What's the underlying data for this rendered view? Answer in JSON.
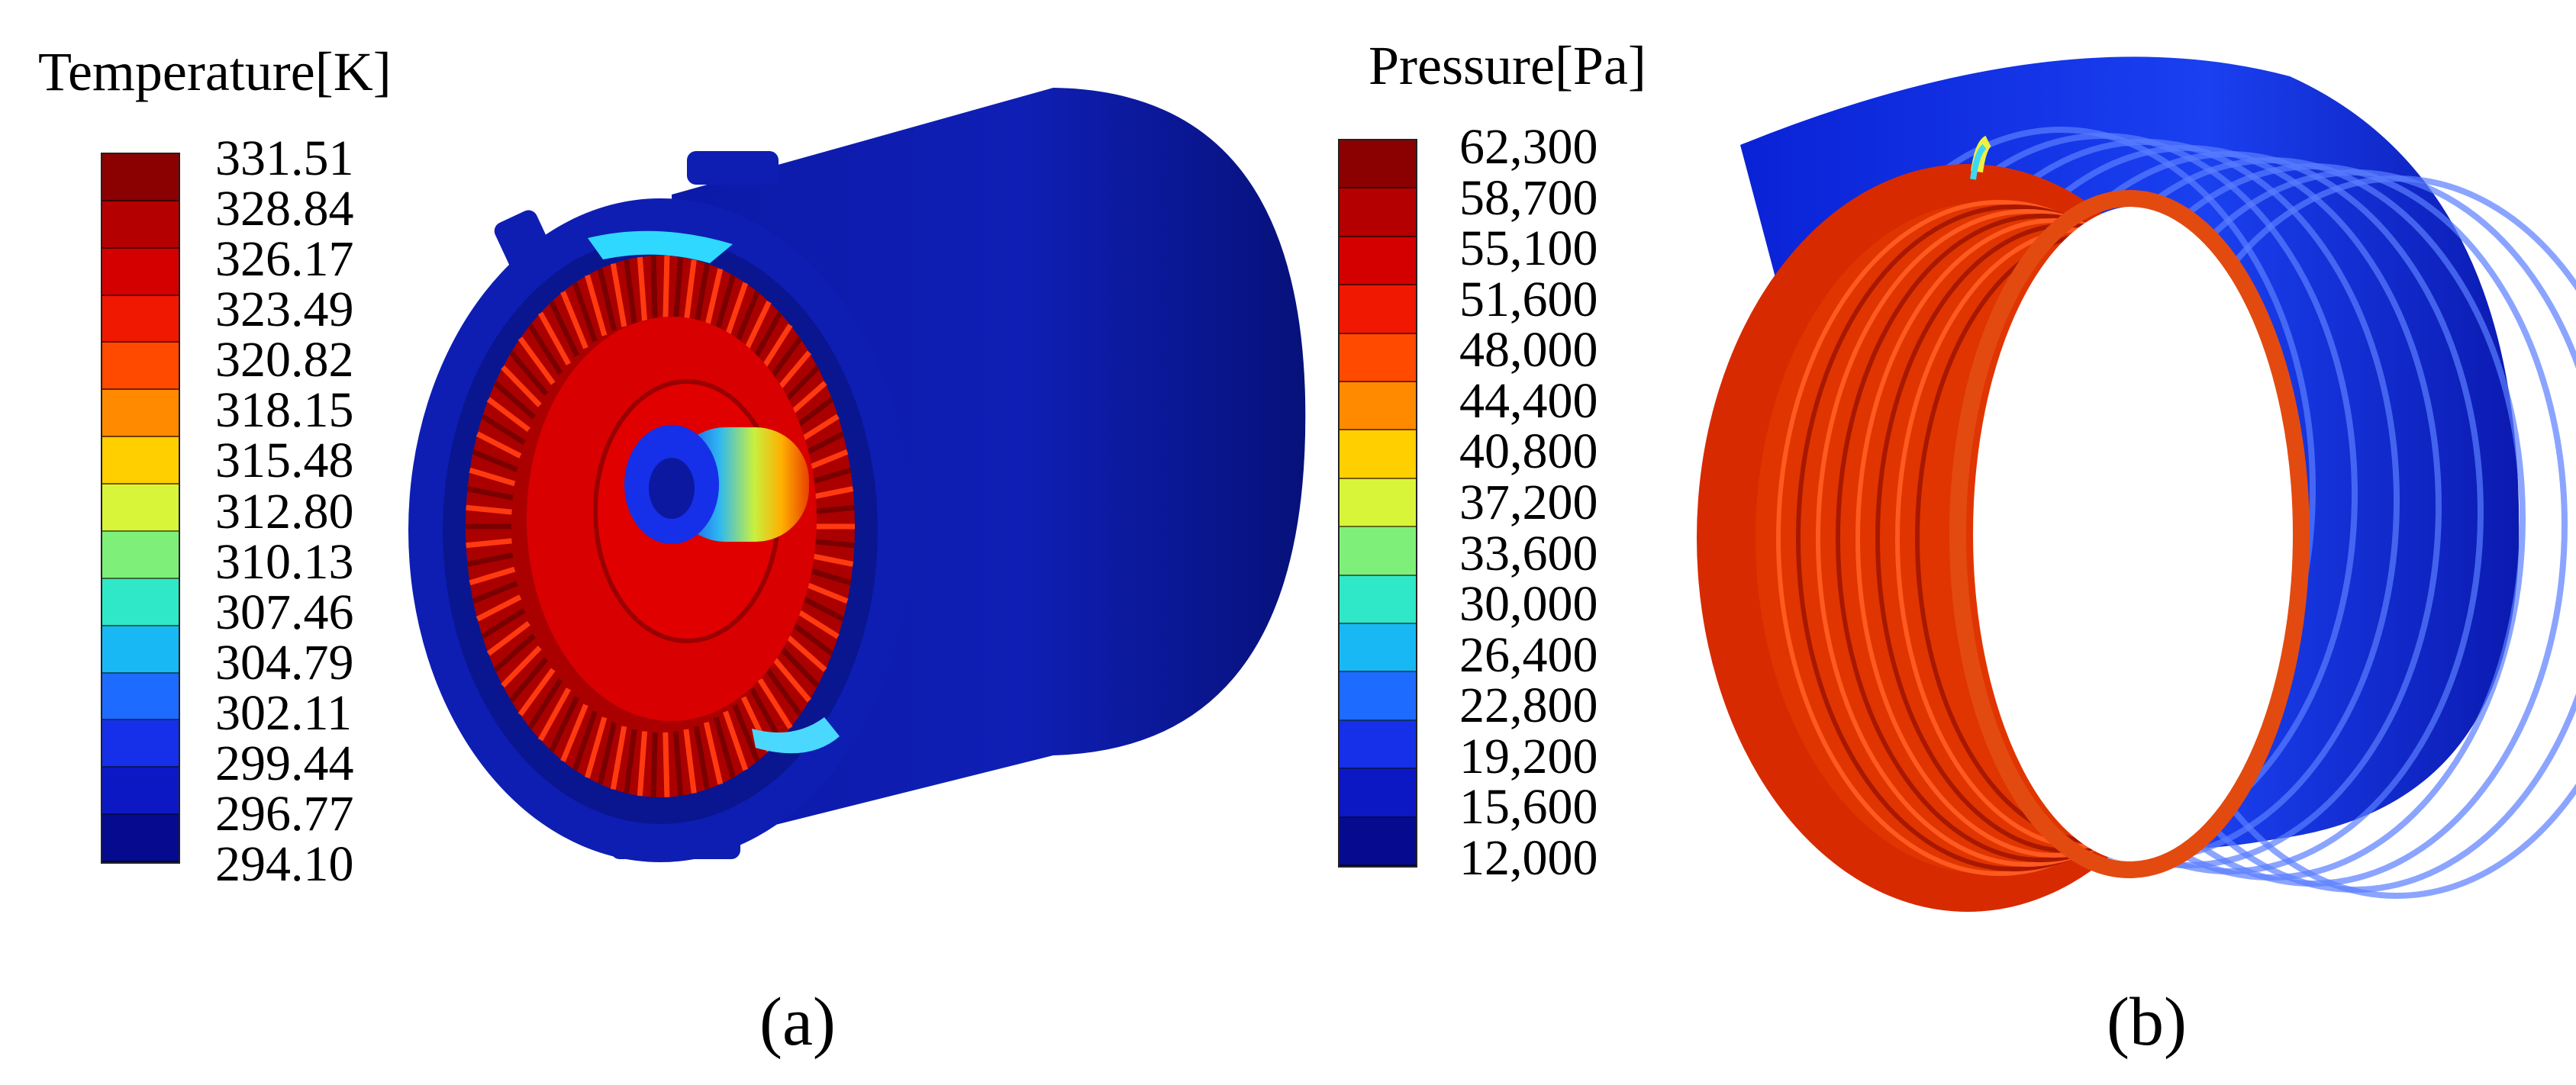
{
  "panels": [
    {
      "id": "a",
      "legend_title": "Temperature[K]",
      "tick_labels": [
        "331.51",
        "328.84",
        "326.17",
        "323.49",
        "320.82",
        "318.15",
        "315.48",
        "312.80",
        "310.13",
        "307.46",
        "304.79",
        "302.11",
        "299.44",
        "296.77",
        "294.10"
      ],
      "caption": "(a)",
      "scale_colors": [
        "#8b0000",
        "#b40000",
        "#d40000",
        "#f01800",
        "#ff4a00",
        "#ff8a00",
        "#ffcf00",
        "#d9f53a",
        "#7ef07a",
        "#2fe8c7",
        "#18b8f5",
        "#1e6bff",
        "#1530e8",
        "#0c18c4",
        "#050a8f"
      ]
    },
    {
      "id": "b",
      "legend_title": "Pressure[Pa]",
      "tick_labels": [
        "62,300",
        "58,700",
        "55,100",
        "51,600",
        "48,000",
        "44,400",
        "40,800",
        "37,200",
        "33,600",
        "30,000",
        "26,400",
        "22,800",
        "19,200",
        "15,600",
        "12,000"
      ],
      "caption": "(b)",
      "scale_colors": [
        "#8b0000",
        "#b40000",
        "#d40000",
        "#f01800",
        "#ff4a00",
        "#ff8a00",
        "#ffcf00",
        "#d9f53a",
        "#7ef07a",
        "#2fe8c7",
        "#18b8f5",
        "#1e6bff",
        "#1530e8",
        "#0c18c4",
        "#050a8f"
      ]
    }
  ]
}
